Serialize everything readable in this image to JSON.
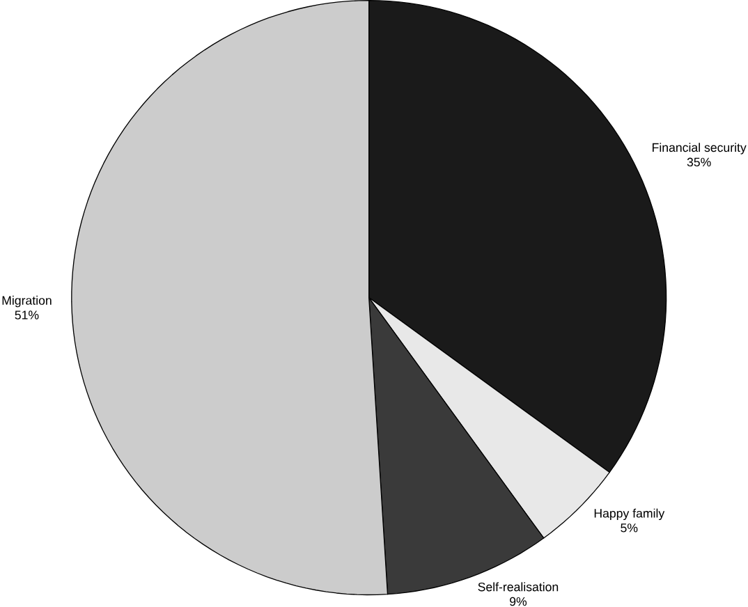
{
  "chart_data": {
    "type": "pie",
    "categories": [
      "Financial security",
      "Happy family",
      "Self-realisation",
      "Migration"
    ],
    "values": [
      35,
      5,
      9,
      51
    ],
    "value_labels": [
      "35%",
      "5%",
      "9%",
      "51%"
    ],
    "colors": [
      "#1a1a1a",
      "#e8e8e8",
      "#3a3a3a",
      "#cccccc"
    ]
  }
}
